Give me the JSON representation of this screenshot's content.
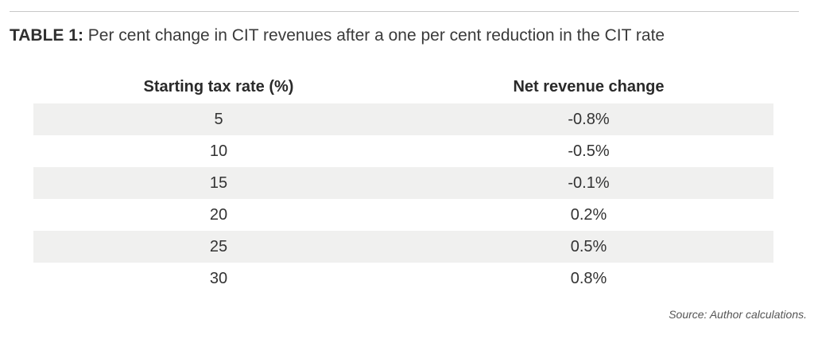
{
  "caption": {
    "label": "TABLE 1:",
    "text": " Per cent change in CIT revenues after a one per cent reduction in the CIT rate"
  },
  "table": {
    "columns": [
      "Starting tax rate (%)",
      "Net revenue change"
    ],
    "rows": [
      [
        "5",
        "-0.8%"
      ],
      [
        "10",
        "-0.5%"
      ],
      [
        "15",
        "-0.1%"
      ],
      [
        "20",
        "0.2%"
      ],
      [
        "25",
        "0.5%"
      ],
      [
        "30",
        "0.8%"
      ]
    ]
  },
  "source": "Source: Author calculations.",
  "colors": {
    "stripe": "#f0f0ef",
    "text": "#333333",
    "rule": "#c8c8c8"
  }
}
